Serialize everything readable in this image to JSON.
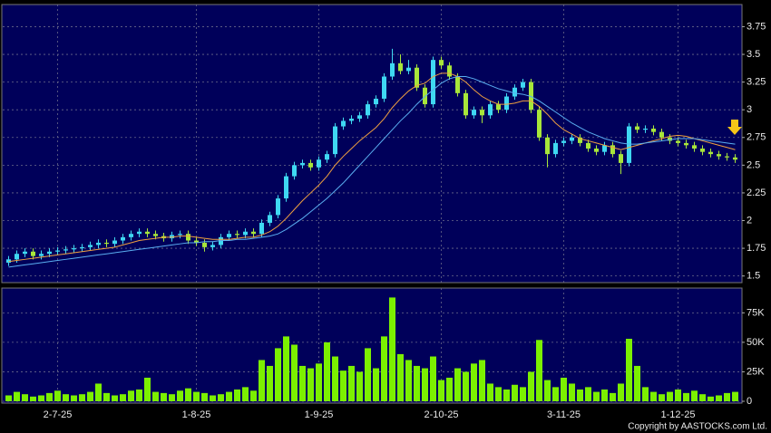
{
  "chart_data": [
    {
      "type": "candlestick",
      "open": [
        1.62,
        1.65,
        1.7,
        1.72,
        1.68,
        1.7,
        1.72,
        1.73,
        1.74,
        1.75,
        1.76,
        1.78,
        1.8,
        1.79,
        1.82,
        1.85,
        1.88,
        1.9,
        1.88,
        1.86,
        1.84,
        1.87,
        1.88,
        1.82,
        1.8,
        1.76,
        1.78,
        1.85,
        1.88,
        1.87,
        1.9,
        1.88,
        1.98,
        2.05,
        2.2,
        2.4,
        2.5,
        2.52,
        2.48,
        2.55,
        2.6,
        2.85,
        2.9,
        2.92,
        2.95,
        3.05,
        3.1,
        3.3,
        3.42,
        3.35,
        3.38,
        3.2,
        3.05,
        3.45,
        3.4,
        3.3,
        3.15,
        2.95,
        3.0,
        2.95,
        3.05,
        3.0,
        3.12,
        3.2,
        3.25,
        3.0,
        2.75,
        2.6,
        2.7,
        2.72,
        2.75,
        2.7,
        2.65,
        2.62,
        2.68,
        2.6,
        2.52,
        2.85,
        2.82,
        2.83,
        2.8,
        2.75,
        2.72,
        2.7,
        2.68,
        2.65,
        2.62,
        2.6,
        2.58,
        2.57
      ],
      "high": [
        1.68,
        1.73,
        1.75,
        1.75,
        1.73,
        1.75,
        1.76,
        1.77,
        1.78,
        1.79,
        1.81,
        1.83,
        1.83,
        1.85,
        1.88,
        1.91,
        1.93,
        1.93,
        1.91,
        1.89,
        1.9,
        1.91,
        1.91,
        1.85,
        1.83,
        1.81,
        1.88,
        1.91,
        1.91,
        1.93,
        1.93,
        2.01,
        2.08,
        2.23,
        2.43,
        2.53,
        2.55,
        2.55,
        2.58,
        2.63,
        2.88,
        2.93,
        2.95,
        2.98,
        3.08,
        3.13,
        3.33,
        3.55,
        3.5,
        3.45,
        3.41,
        3.23,
        3.48,
        3.48,
        3.43,
        3.33,
        3.18,
        3.03,
        3.03,
        3.08,
        3.08,
        3.15,
        3.23,
        3.28,
        3.28,
        3.03,
        2.78,
        2.73,
        2.75,
        2.78,
        2.78,
        2.73,
        2.68,
        2.71,
        2.71,
        2.63,
        2.88,
        2.88,
        2.86,
        2.86,
        2.83,
        2.78,
        2.75,
        2.73,
        2.71,
        2.68,
        2.65,
        2.63,
        2.61,
        2.6
      ],
      "low": [
        1.59,
        1.62,
        1.67,
        1.65,
        1.65,
        1.67,
        1.69,
        1.7,
        1.71,
        1.72,
        1.73,
        1.75,
        1.76,
        1.76,
        1.79,
        1.82,
        1.85,
        1.85,
        1.83,
        1.81,
        1.81,
        1.84,
        1.79,
        1.77,
        1.72,
        1.73,
        1.75,
        1.82,
        1.84,
        1.84,
        1.85,
        1.85,
        1.95,
        2.02,
        2.17,
        2.37,
        2.47,
        2.45,
        2.45,
        2.52,
        2.57,
        2.82,
        2.87,
        2.89,
        2.92,
        3.02,
        3.07,
        3.27,
        3.32,
        3.32,
        3.17,
        3.02,
        3.02,
        3.37,
        3.27,
        3.12,
        2.92,
        2.92,
        2.88,
        2.92,
        2.97,
        2.97,
        3.09,
        3.17,
        2.97,
        2.72,
        2.48,
        2.57,
        2.67,
        2.69,
        2.67,
        2.62,
        2.59,
        2.59,
        2.57,
        2.42,
        2.49,
        2.79,
        2.79,
        2.77,
        2.72,
        2.69,
        2.67,
        2.65,
        2.62,
        2.59,
        2.57,
        2.55,
        2.54,
        2.52
      ],
      "close": [
        1.65,
        1.7,
        1.72,
        1.68,
        1.7,
        1.72,
        1.73,
        1.74,
        1.75,
        1.76,
        1.78,
        1.8,
        1.79,
        1.82,
        1.85,
        1.88,
        1.9,
        1.88,
        1.86,
        1.84,
        1.87,
        1.88,
        1.82,
        1.8,
        1.76,
        1.78,
        1.85,
        1.88,
        1.87,
        1.9,
        1.88,
        1.98,
        2.05,
        2.2,
        2.4,
        2.5,
        2.52,
        2.48,
        2.55,
        2.6,
        2.85,
        2.9,
        2.92,
        2.95,
        3.05,
        3.1,
        3.3,
        3.42,
        3.35,
        3.38,
        3.2,
        3.05,
        3.45,
        3.4,
        3.3,
        3.15,
        2.95,
        3.0,
        2.95,
        3.05,
        3.0,
        3.12,
        3.2,
        3.25,
        3.0,
        2.75,
        2.6,
        2.7,
        2.72,
        2.75,
        2.7,
        2.65,
        2.62,
        2.68,
        2.6,
        2.52,
        2.85,
        2.82,
        2.83,
        2.8,
        2.75,
        2.72,
        2.7,
        2.68,
        2.65,
        2.62,
        2.6,
        2.58,
        2.57,
        2.55
      ],
      "up_color": "#3fd8f2",
      "down_color": "#a8e63a",
      "series": [
        {
          "color": "#f0a040",
          "values": [
            1.63,
            1.64,
            1.65,
            1.66,
            1.67,
            1.68,
            1.69,
            1.7,
            1.71,
            1.72,
            1.73,
            1.74,
            1.75,
            1.76,
            1.78,
            1.8,
            1.82,
            1.83,
            1.84,
            1.85,
            1.85,
            1.86,
            1.86,
            1.85,
            1.84,
            1.83,
            1.83,
            1.83,
            1.84,
            1.85,
            1.85,
            1.87,
            1.9,
            1.95,
            2.02,
            2.1,
            2.18,
            2.25,
            2.32,
            2.4,
            2.5,
            2.58,
            2.65,
            2.72,
            2.78,
            2.84,
            2.92,
            3.02,
            3.1,
            3.17,
            3.22,
            3.24,
            3.3,
            3.33,
            3.33,
            3.3,
            3.25,
            3.18,
            3.12,
            3.08,
            3.05,
            3.05,
            3.06,
            3.08,
            3.08,
            3.03,
            2.96,
            2.88,
            2.82,
            2.78,
            2.74,
            2.72,
            2.7,
            2.68,
            2.66,
            2.64,
            2.66,
            2.68,
            2.7,
            2.72,
            2.74,
            2.76,
            2.77,
            2.76,
            2.74,
            2.72,
            2.7,
            2.68,
            2.66,
            2.64
          ]
        },
        {
          "color": "#5aaef0",
          "values": [
            1.58,
            1.59,
            1.6,
            1.61,
            1.62,
            1.63,
            1.64,
            1.65,
            1.66,
            1.67,
            1.68,
            1.69,
            1.7,
            1.71,
            1.72,
            1.73,
            1.74,
            1.75,
            1.76,
            1.77,
            1.78,
            1.79,
            1.8,
            1.8,
            1.81,
            1.81,
            1.82,
            1.82,
            1.83,
            1.83,
            1.84,
            1.85,
            1.86,
            1.88,
            1.92,
            1.97,
            2.02,
            2.08,
            2.14,
            2.2,
            2.27,
            2.34,
            2.42,
            2.5,
            2.58,
            2.66,
            2.74,
            2.82,
            2.9,
            2.97,
            3.05,
            3.12,
            3.18,
            3.24,
            3.28,
            3.3,
            3.3,
            3.28,
            3.25,
            3.22,
            3.19,
            3.17,
            3.15,
            3.14,
            3.12,
            3.08,
            3.03,
            2.98,
            2.93,
            2.88,
            2.84,
            2.8,
            2.77,
            2.74,
            2.72,
            2.7,
            2.69,
            2.69,
            2.7,
            2.71,
            2.72,
            2.73,
            2.74,
            2.74,
            2.74,
            2.73,
            2.72,
            2.71,
            2.7,
            2.69
          ]
        }
      ],
      "ylim": [
        1.44,
        3.95
      ],
      "yticks": [
        1.5,
        1.75,
        2,
        2.25,
        2.5,
        2.75,
        3,
        3.25,
        3.5,
        3.75
      ],
      "grid": true
    },
    {
      "type": "bar",
      "categories": [
        null,
        null,
        null,
        null,
        null,
        null,
        "2-7-25",
        null,
        null,
        null,
        null,
        null,
        null,
        null,
        null,
        null,
        null,
        null,
        null,
        null,
        null,
        null,
        null,
        "1-8-25",
        null,
        null,
        null,
        null,
        null,
        null,
        null,
        null,
        null,
        null,
        null,
        null,
        null,
        null,
        "1-9-25",
        null,
        null,
        null,
        null,
        null,
        null,
        null,
        null,
        null,
        null,
        null,
        null,
        null,
        null,
        "2-10-25",
        null,
        null,
        null,
        null,
        null,
        null,
        null,
        null,
        null,
        null,
        null,
        null,
        null,
        null,
        "3-11-25",
        null,
        null,
        null,
        null,
        null,
        null,
        null,
        null,
        null,
        null,
        null,
        null,
        null,
        "1-12-25",
        null,
        null,
        null,
        null,
        null,
        null,
        null
      ],
      "values": [
        5000,
        8000,
        6000,
        4000,
        5000,
        7000,
        9000,
        6000,
        5000,
        6000,
        8000,
        15000,
        7000,
        5000,
        6000,
        9000,
        10000,
        20000,
        8000,
        7000,
        6000,
        9000,
        11000,
        8000,
        7000,
        5000,
        6000,
        8000,
        10000,
        12000,
        9000,
        35000,
        30000,
        45000,
        55000,
        48000,
        30000,
        28000,
        32000,
        50000,
        38000,
        26000,
        30000,
        25000,
        45000,
        28000,
        55000,
        88000,
        40000,
        35000,
        30000,
        28000,
        38000,
        18000,
        20000,
        28000,
        25000,
        32000,
        35000,
        15000,
        12000,
        10000,
        14000,
        12000,
        25000,
        52000,
        18000,
        12000,
        20000,
        15000,
        10000,
        12000,
        8000,
        10000,
        7000,
        15000,
        53000,
        30000,
        12000,
        8000,
        6000,
        8000,
        10000,
        7000,
        9000,
        6000,
        4000,
        5000,
        7000,
        8000
      ],
      "color": "#7cf000",
      "ylim": [
        0,
        96000
      ],
      "yticks": [
        0,
        {
          "value": 25000,
          "label": "25K"
        },
        {
          "value": 50000,
          "label": "50K"
        },
        {
          "value": 75000,
          "label": "75K"
        }
      ],
      "grid": true
    }
  ],
  "footer": "Copyright by AASTOCKS.com Ltd."
}
